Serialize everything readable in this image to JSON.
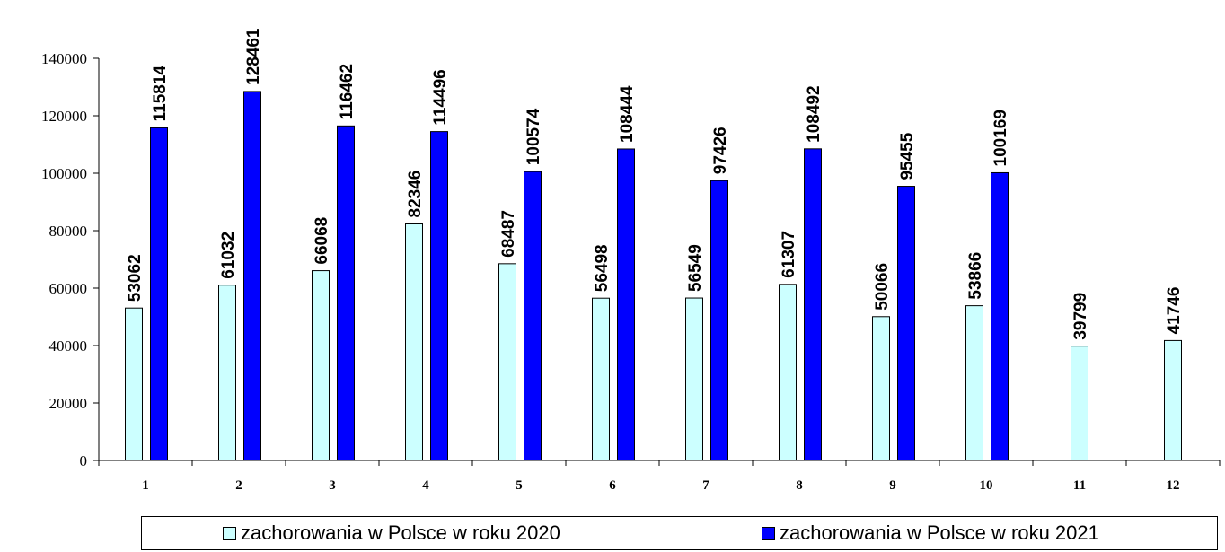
{
  "chart_data": {
    "type": "bar",
    "categories": [
      "1",
      "2",
      "3",
      "4",
      "5",
      "6",
      "7",
      "8",
      "9",
      "10",
      "11",
      "12"
    ],
    "series": [
      {
        "name": "zachorowania w Polsce w roku 2020",
        "color": "#ccffff",
        "values": [
          53062,
          61032,
          66068,
          82346,
          68487,
          56498,
          56549,
          61307,
          50066,
          53866,
          39799,
          41746
        ],
        "labels": [
          "53062",
          "61032",
          "66068",
          "82346",
          "68487",
          "56498",
          "56549",
          "61307",
          "50066",
          "53866",
          "39799",
          "41746"
        ]
      },
      {
        "name": "zachorowania w Polsce w roku 2021",
        "color": "#0000ff",
        "values": [
          115814,
          128461,
          116462,
          114496,
          100574,
          108444,
          97426,
          108492,
          95455,
          100169,
          null,
          null
        ],
        "labels": [
          "115814",
          "128461",
          "116462",
          "114496",
          "100574",
          "108444",
          "97426",
          "108492",
          "95455",
          "100169",
          "",
          ""
        ]
      }
    ],
    "yticks": [
      "0",
      "20000",
      "40000",
      "60000",
      "80000",
      "100000",
      "120000",
      "140000"
    ],
    "ylim": [
      0,
      140000
    ],
    "title": "",
    "xlabel": "",
    "ylabel": "",
    "grid": false,
    "legend_position": "bottom"
  }
}
